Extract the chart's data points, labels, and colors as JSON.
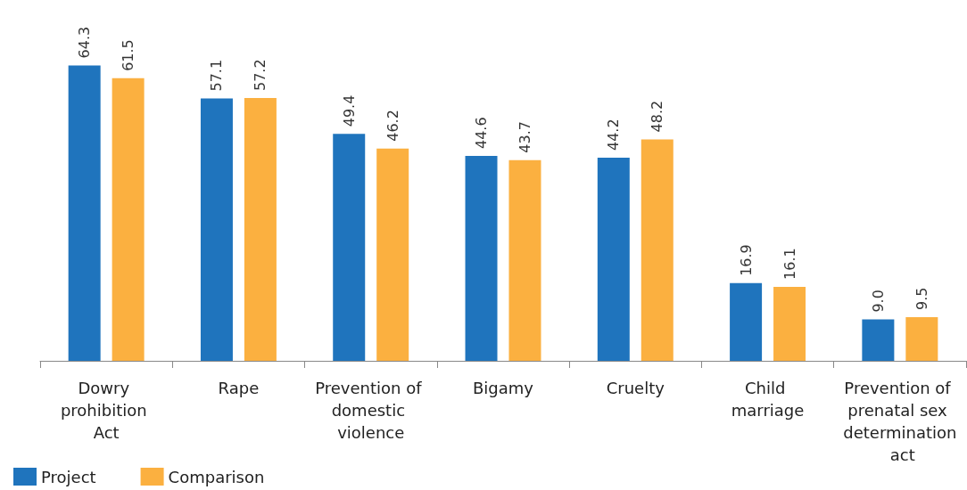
{
  "chart_data": {
    "type": "bar",
    "categories": [
      "Dowry prohibition Act",
      "Rape",
      "Prevention of domestic violence",
      "Bigamy",
      "Cruelty",
      "Child marriage",
      "Prevention of prenatal sex determination act"
    ],
    "series": [
      {
        "name": "Project",
        "color": "#1f74bd",
        "values": [
          64.3,
          57.1,
          49.4,
          44.6,
          44.2,
          16.9,
          9.0
        ],
        "value_labels": [
          "64.3",
          "57.1",
          "49.4",
          "44.6",
          "44.2",
          "16.9",
          "9.0"
        ]
      },
      {
        "name": "Comparison",
        "color": "#fbb040",
        "values": [
          61.5,
          57.2,
          46.2,
          43.7,
          48.2,
          16.1,
          9.5
        ],
        "value_labels": [
          "61.5",
          "57.2",
          "46.2",
          "43.7",
          "48.2",
          "16.1",
          "9.5"
        ]
      }
    ],
    "legend": "bottom left",
    "grid": false,
    "tick_labels": "x"
  }
}
